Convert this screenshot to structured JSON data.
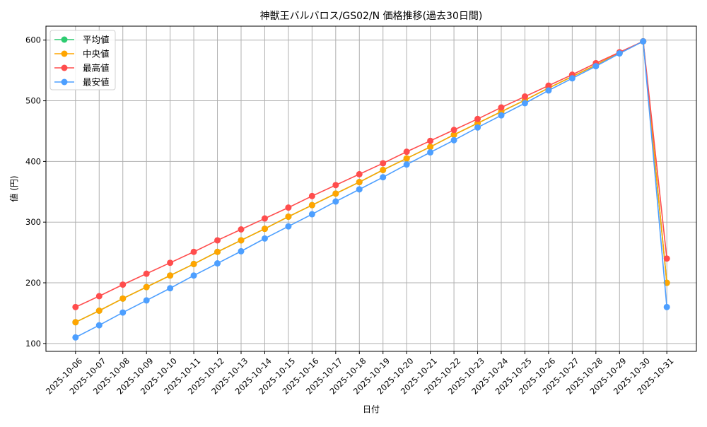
{
  "chart_data": {
    "type": "line",
    "title": "神獣王バルバロス/GS02/N 価格推移(過去30日間)",
    "xlabel": "日付",
    "ylabel": "値 (円)",
    "x": [
      "2025-10-06",
      "2025-10-07",
      "2025-10-08",
      "2025-10-09",
      "2025-10-10",
      "2025-10-11",
      "2025-10-12",
      "2025-10-13",
      "2025-10-14",
      "2025-10-15",
      "2025-10-16",
      "2025-10-17",
      "2025-10-18",
      "2025-10-19",
      "2025-10-20",
      "2025-10-21",
      "2025-10-22",
      "2025-10-23",
      "2025-10-24",
      "2025-10-25",
      "2025-10-26",
      "2025-10-27",
      "2025-10-28",
      "2025-10-29",
      "2025-10-30",
      "2025-10-31"
    ],
    "yticks": [
      100,
      200,
      300,
      400,
      500,
      600
    ],
    "ylim": [
      87,
      623
    ],
    "grid": true,
    "legend_position": "top-left",
    "series": [
      {
        "name": "平均値",
        "color": "#2ecc71",
        "values": [
          135,
          154,
          174,
          193,
          212,
          231,
          251,
          270,
          289,
          309,
          328,
          347,
          366,
          386,
          405,
          424,
          444,
          463,
          482,
          501,
          521,
          540,
          559,
          579,
          598,
          200
        ]
      },
      {
        "name": "中央値",
        "color": "#ffa500",
        "values": [
          135,
          154,
          174,
          193,
          212,
          231,
          251,
          270,
          289,
          309,
          328,
          347,
          366,
          386,
          405,
          424,
          444,
          463,
          482,
          501,
          521,
          540,
          559,
          579,
          598,
          200
        ]
      },
      {
        "name": "最高値",
        "color": "#ff4d4d",
        "values": [
          160,
          178,
          197,
          215,
          233,
          251,
          270,
          288,
          306,
          324,
          343,
          361,
          379,
          397,
          416,
          434,
          452,
          470,
          489,
          507,
          525,
          543,
          562,
          580,
          598,
          240
        ]
      },
      {
        "name": "最安値",
        "color": "#4d9fff",
        "values": [
          110,
          130,
          151,
          171,
          191,
          212,
          232,
          252,
          273,
          293,
          313,
          334,
          354,
          374,
          395,
          415,
          435,
          456,
          476,
          496,
          517,
          537,
          557,
          578,
          598,
          160
        ]
      }
    ]
  }
}
